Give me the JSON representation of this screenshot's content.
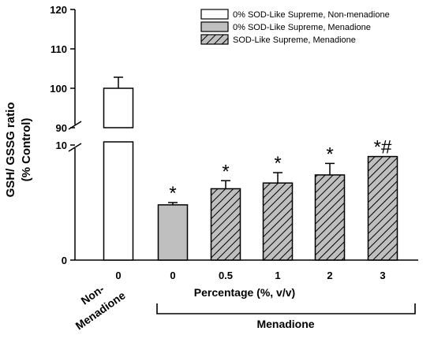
{
  "chart_data": {
    "type": "bar",
    "ylabel_line1": "GSH/ GSSG ratio",
    "ylabel_line2": "(% Control)",
    "xlabel": "Percentage (%, v/v)",
    "group_label_left": "Non-\nMenadione",
    "group_label_left_line1": "Non-",
    "group_label_left_line2": "Menadione",
    "group_label_right": "Menadione",
    "y_axis": {
      "broken": true,
      "lower_range": [
        0,
        10
      ],
      "upper_range": [
        90,
        120
      ],
      "lower_ticks": [
        "0",
        "10"
      ],
      "upper_ticks": [
        "90",
        "100",
        "110",
        "120"
      ]
    },
    "categories": [
      "0",
      "0",
      "0.5",
      "1",
      "2",
      "3"
    ],
    "values": [
      100,
      4.8,
      6.2,
      6.7,
      7.4,
      9.0
    ],
    "errors": [
      2.8,
      0.2,
      0.7,
      0.9,
      1.0,
      0
    ],
    "annotations": [
      "",
      "*",
      "*",
      "*",
      "*",
      "*#"
    ],
    "bar_styles": [
      "open",
      "gray",
      "hatched",
      "hatched",
      "hatched",
      "hatched"
    ],
    "series": [
      {
        "name": "0% SOD-Like Supreme, Non-menadione",
        "style": "open"
      },
      {
        "name": "0% SOD-Like Supreme, Menadione",
        "style": "gray"
      },
      {
        "name": "SOD-Like Supreme, Menadione",
        "style": "hatched"
      }
    ],
    "legend_position": "top-right",
    "colors": {
      "gray": "#bfbfbf",
      "hatch_bg": "#bfbfbf",
      "line": "#000000"
    }
  }
}
